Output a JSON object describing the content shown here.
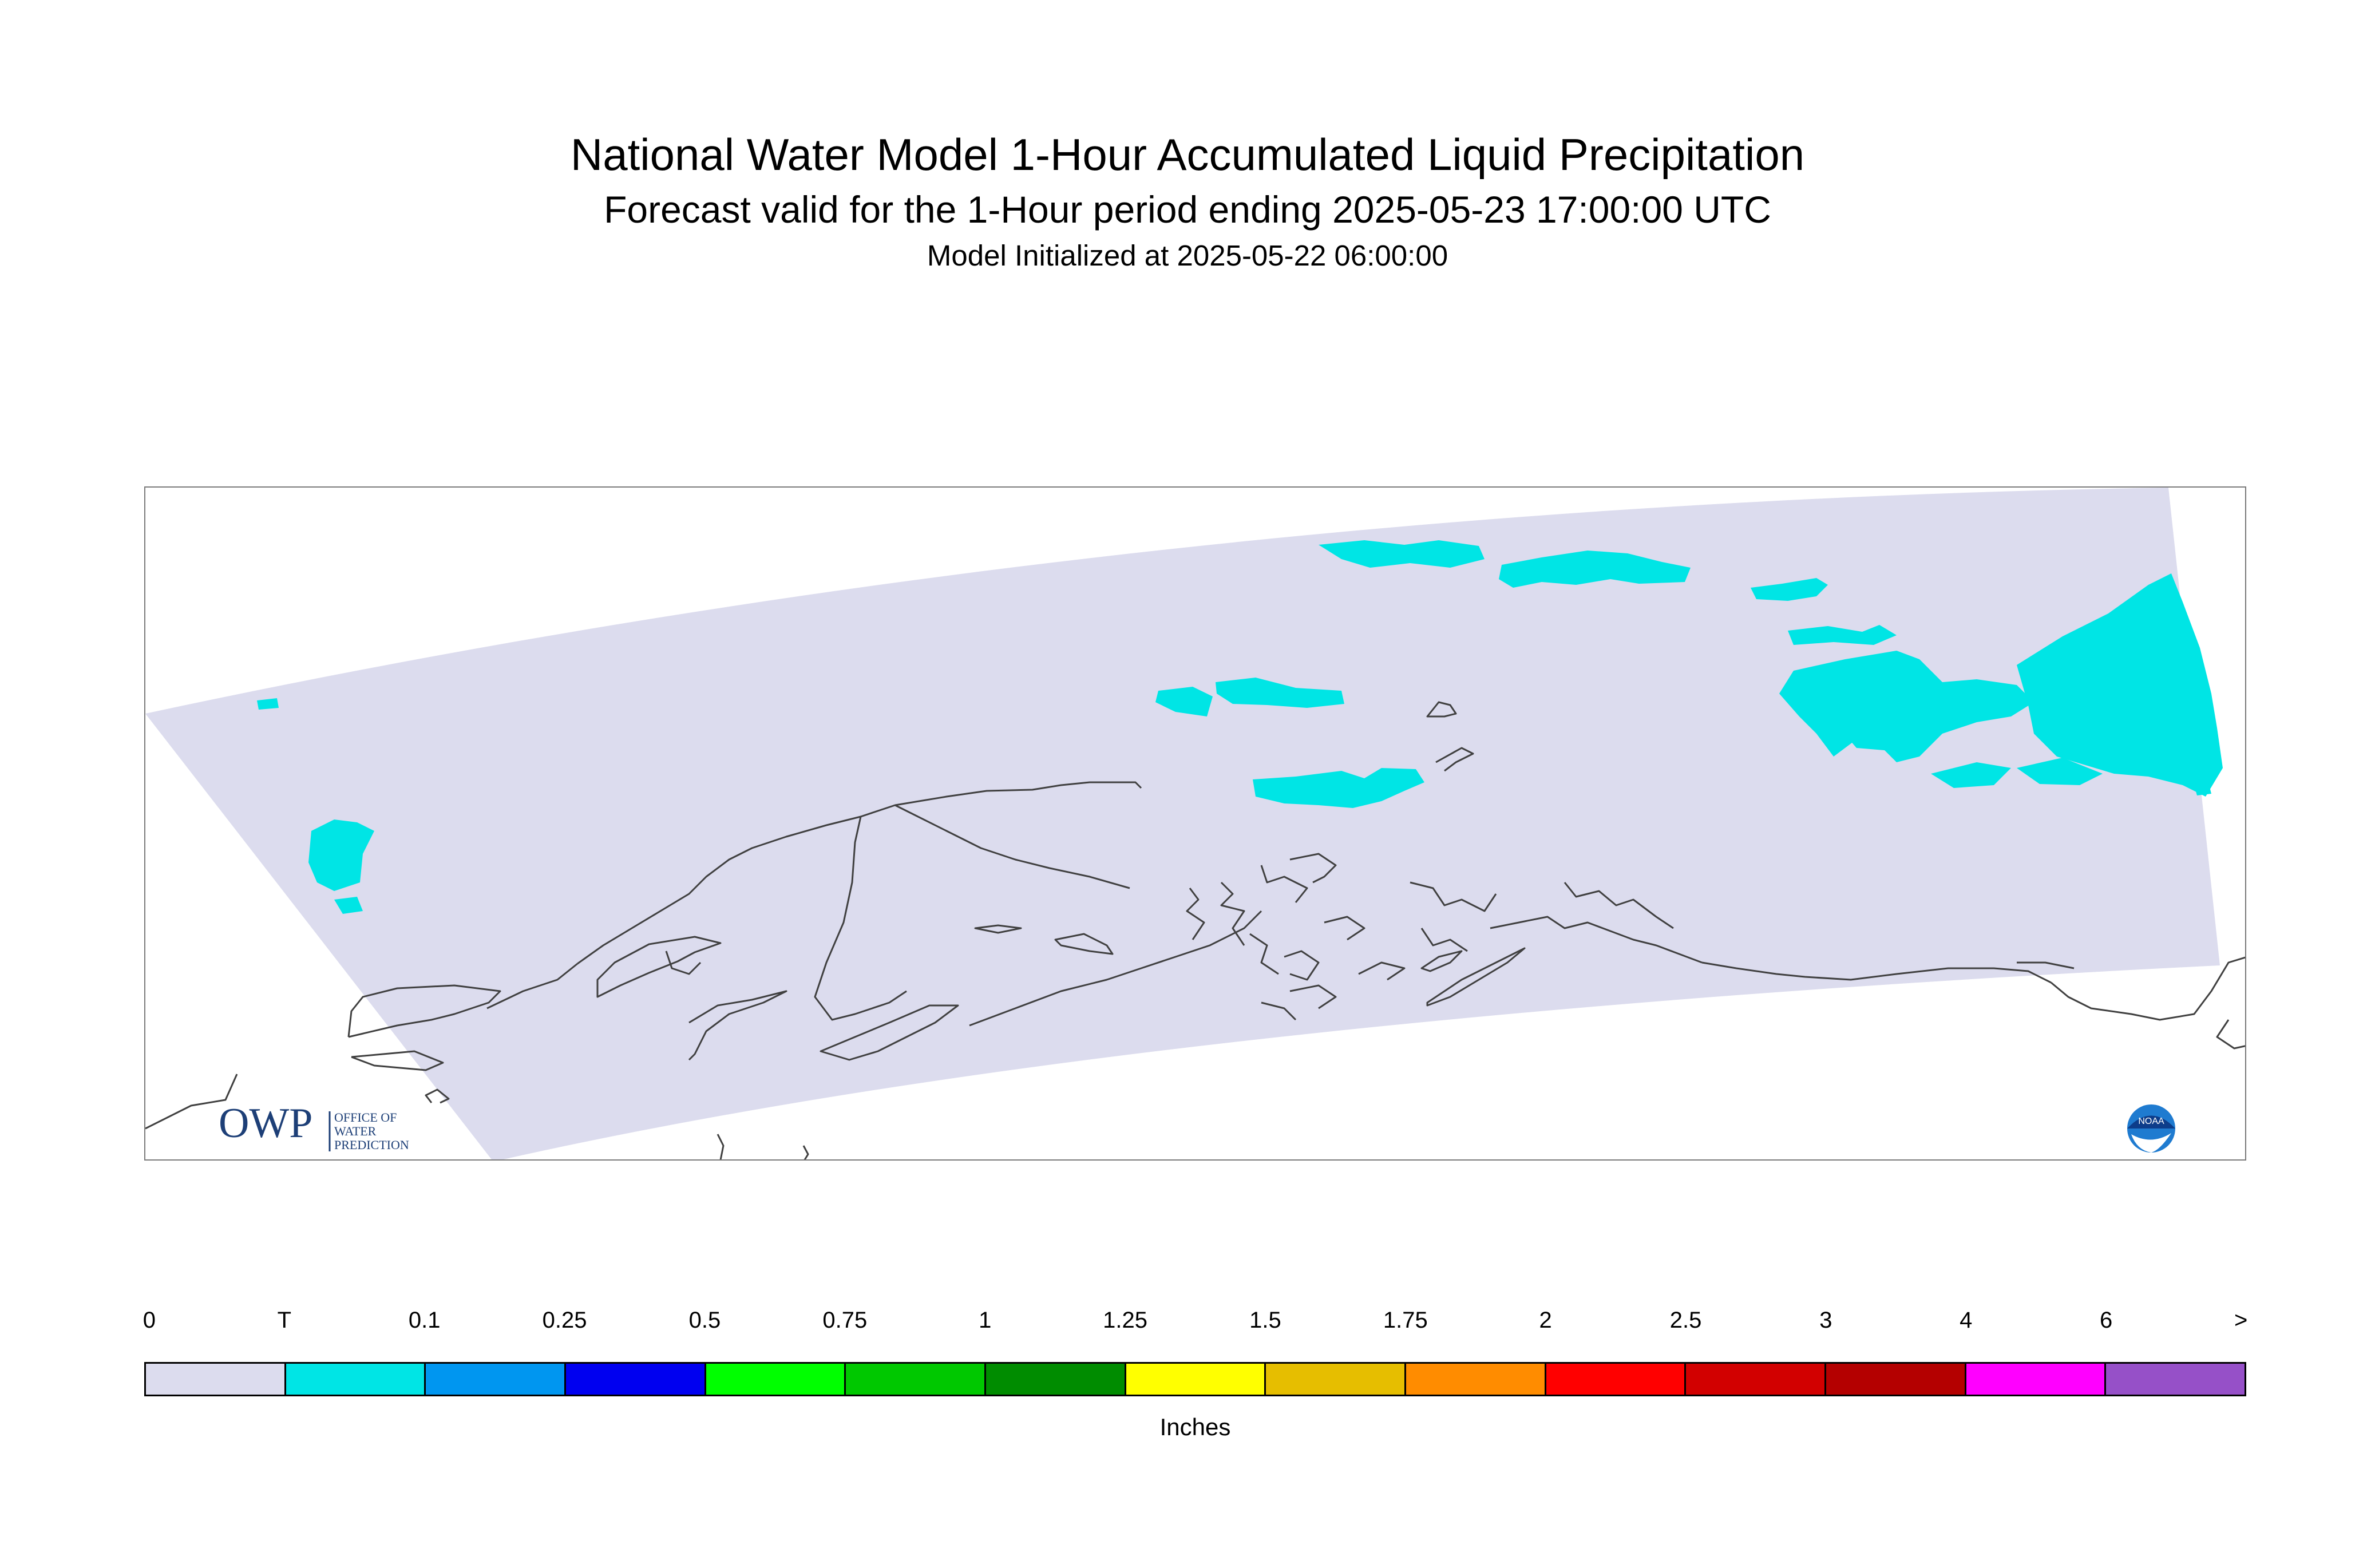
{
  "header": {
    "title": "National Water Model 1-Hour Accumulated Liquid Precipitation",
    "subtitle": "Forecast valid for the 1-Hour period ending 2025-05-23 17:00:00 UTC",
    "init": "Model Initialized at 2025-05-22 06:00:00"
  },
  "map": {
    "domain_fill": "#dcdcee",
    "trace_fill": "#00e5e5",
    "coast_color": "#404040"
  },
  "logos": {
    "owp_letters": "OWP",
    "owp_line1": "OFFICE OF",
    "owp_line2": "WATER",
    "owp_line3": "PREDICTION",
    "noaa_text": "NOAA"
  },
  "legend": {
    "units": "Inches",
    "ticks": [
      "0",
      "T",
      "0.1",
      "0.25",
      "0.5",
      "0.75",
      "1",
      "1.25",
      "1.5",
      "1.75",
      "2",
      "2.5",
      "3",
      "4",
      "6",
      ">"
    ],
    "colors": [
      "#dcdcee",
      "#00e5e5",
      "#0096f0",
      "#0000f0",
      "#00ff00",
      "#00c800",
      "#008c00",
      "#ffff00",
      "#e6be00",
      "#ff8c00",
      "#ff0000",
      "#d20000",
      "#b40000",
      "#ff00ff",
      "#9650c8"
    ]
  }
}
